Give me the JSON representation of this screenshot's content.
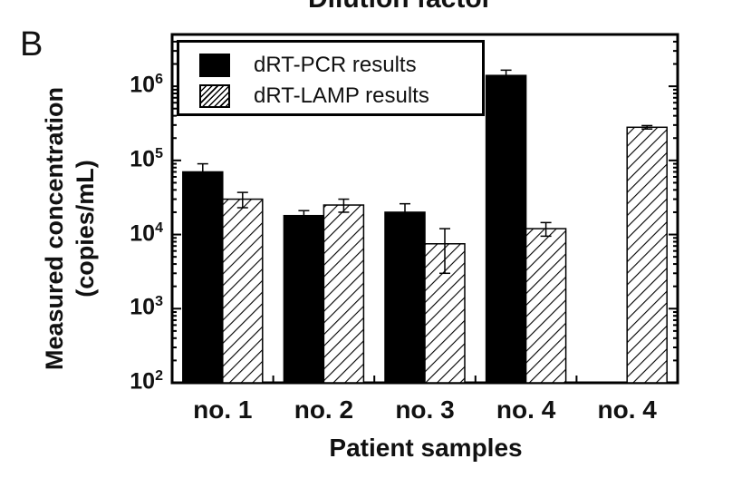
{
  "figure": {
    "top_text": "Dilution factor",
    "panel_label": "B"
  },
  "chart_data": {
    "type": "bar",
    "title": "",
    "xlabel": "Patient samples",
    "ylabel_lines": [
      "Measured concentration",
      "(copies/mL)"
    ],
    "yscale": "log",
    "ylim": [
      100,
      5000000
    ],
    "y_ticks": [
      {
        "value": 100,
        "base": "10",
        "exp": "2"
      },
      {
        "value": 1000,
        "base": "10",
        "exp": "3"
      },
      {
        "value": 10000,
        "base": "10",
        "exp": "4"
      },
      {
        "value": 100000,
        "base": "10",
        "exp": "5"
      },
      {
        "value": 1000000,
        "base": "10",
        "exp": "6"
      }
    ],
    "categories": [
      "no. 1",
      "no. 2",
      "no. 3",
      "no. 4",
      "no. 4"
    ],
    "series": [
      {
        "name": "dRT-PCR results",
        "fill": "solid",
        "values": [
          70000,
          18000,
          20000,
          1400000,
          null
        ],
        "errors": [
          20000,
          3000,
          6000,
          250000,
          null
        ]
      },
      {
        "name": "dRT-LAMP results",
        "fill": "hatch",
        "values": [
          30000,
          25000,
          7500,
          12000,
          280000
        ],
        "errors": [
          7000,
          5000,
          4500,
          2500,
          15000
        ]
      }
    ],
    "legend_placement": "top-left",
    "grid": false,
    "colors": {
      "solid": "#000000",
      "hatch_line": "#000000",
      "background": "#ffffff"
    }
  }
}
